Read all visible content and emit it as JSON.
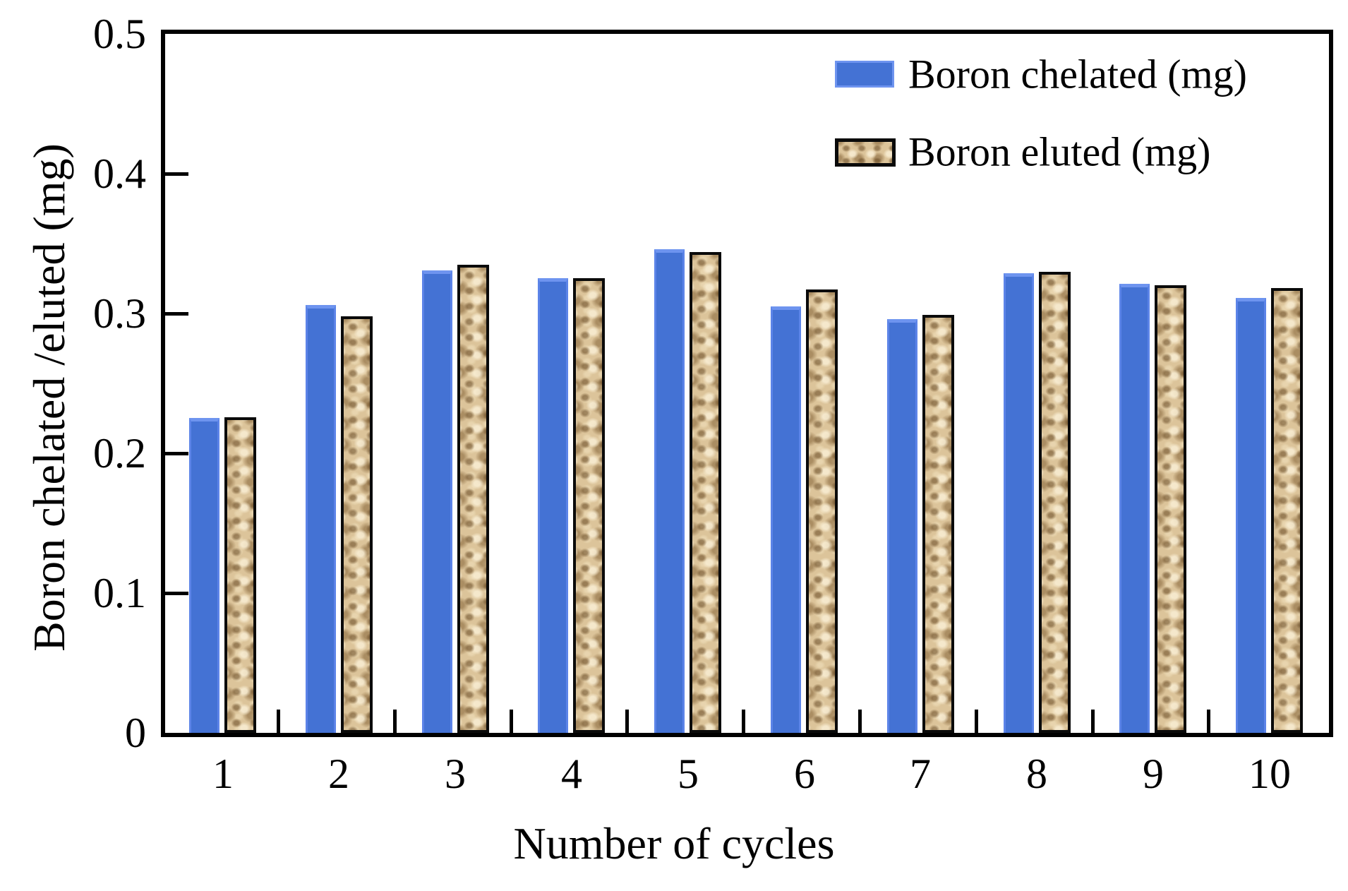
{
  "chart_data": {
    "type": "bar",
    "title": "",
    "xlabel": "Number of cycles",
    "ylabel": "Boron chelated /eluted (mg)",
    "categories": [
      "1",
      "2",
      "3",
      "4",
      "5",
      "6",
      "7",
      "8",
      "9",
      "10"
    ],
    "series": [
      {
        "name": "Boron chelated (mg)",
        "color": "#4472d4",
        "values": [
          0.225,
          0.306,
          0.331,
          0.325,
          0.346,
          0.305,
          0.296,
          0.329,
          0.321,
          0.311
        ]
      },
      {
        "name": "Boron eluted (mg)",
        "color": "#dcc49a",
        "pattern": "burlap-texture",
        "values": [
          0.226,
          0.298,
          0.335,
          0.325,
          0.344,
          0.317,
          0.299,
          0.33,
          0.32,
          0.318
        ]
      }
    ],
    "ylim": [
      0,
      0.5
    ],
    "yticks": [
      0,
      0.1,
      0.2,
      0.3,
      0.4,
      0.5
    ],
    "ytick_labels": [
      "0",
      "0.1",
      "0.2",
      "0.3",
      "0.4",
      "0.5"
    ],
    "grid": false,
    "legend_position": "top-right",
    "axis_color": "#000000"
  }
}
